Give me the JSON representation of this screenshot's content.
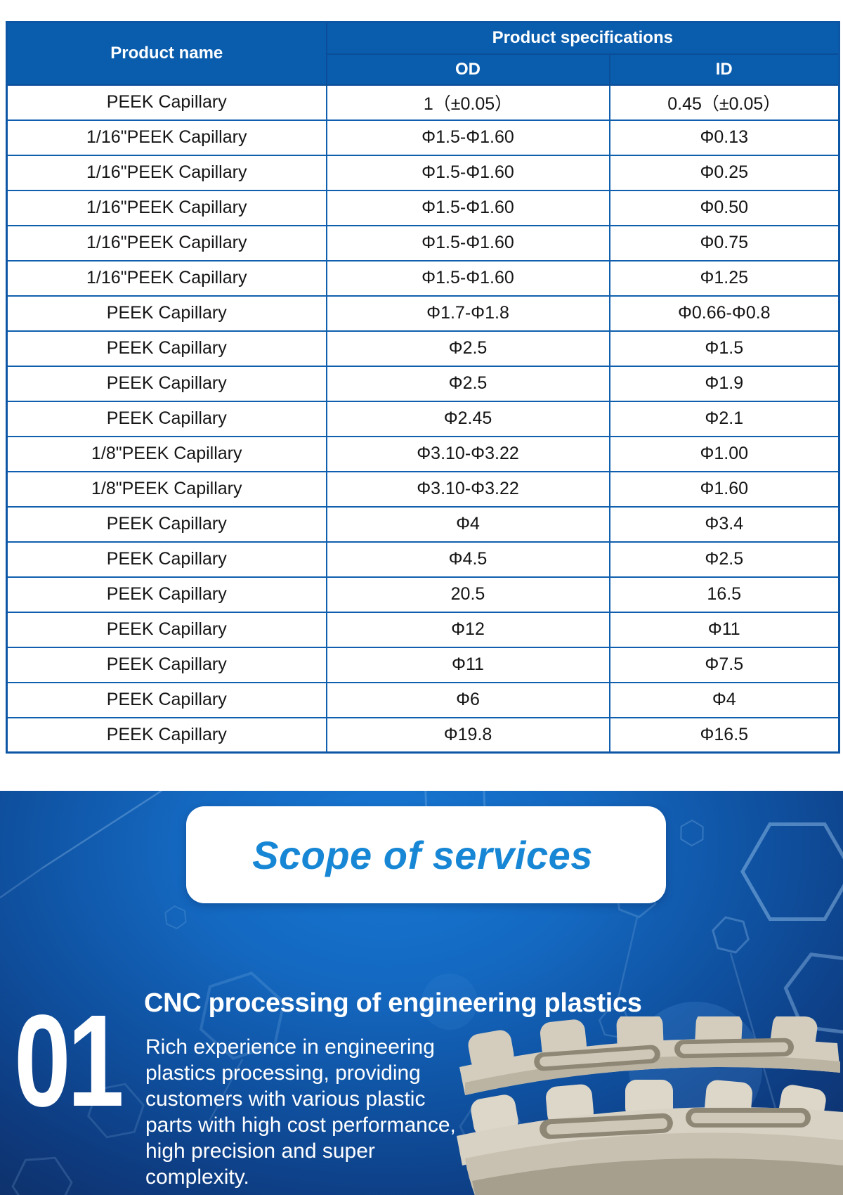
{
  "table": {
    "header": {
      "product_name": "Product name",
      "product_specifications": "Product specifications",
      "od": "OD",
      "id": "ID"
    },
    "rows": [
      {
        "name": "PEEK Capillary",
        "od": "1（±0.05）",
        "id": "0.45（±0.05）"
      },
      {
        "name": "1/16\"PEEK Capillary",
        "od": "Φ1.5-Φ1.60",
        "id": "Φ0.13"
      },
      {
        "name": "1/16\"PEEK Capillary",
        "od": "Φ1.5-Φ1.60",
        "id": "Φ0.25"
      },
      {
        "name": "1/16\"PEEK Capillary",
        "od": "Φ1.5-Φ1.60",
        "id": "Φ0.50"
      },
      {
        "name": "1/16\"PEEK Capillary",
        "od": "Φ1.5-Φ1.60",
        "id": "Φ0.75"
      },
      {
        "name": "1/16\"PEEK Capillary",
        "od": "Φ1.5-Φ1.60",
        "id": "Φ1.25"
      },
      {
        "name": "PEEK Capillary",
        "od": "Φ1.7-Φ1.8",
        "id": "Φ0.66-Φ0.8"
      },
      {
        "name": "PEEK Capillary",
        "od": "Φ2.5",
        "id": "Φ1.5"
      },
      {
        "name": "PEEK Capillary",
        "od": "Φ2.5",
        "id": "Φ1.9"
      },
      {
        "name": "PEEK Capillary",
        "od": "Φ2.45",
        "id": "Φ2.1"
      },
      {
        "name": "1/8\"PEEK Capillary",
        "od": "Φ3.10-Φ3.22",
        "id": "Φ1.00"
      },
      {
        "name": "1/8\"PEEK Capillary",
        "od": "Φ3.10-Φ3.22",
        "id": "Φ1.60"
      },
      {
        "name": "PEEK Capillary",
        "od": "Φ4",
        "id": "Φ3.4"
      },
      {
        "name": "PEEK Capillary",
        "od": "Φ4.5",
        "id": "Φ2.5"
      },
      {
        "name": "PEEK Capillary",
        "od": "20.5",
        "id": "16.5"
      },
      {
        "name": "PEEK Capillary",
        "od": "Φ12",
        "id": "Φ11"
      },
      {
        "name": "PEEK Capillary",
        "od": "Φ11",
        "id": "Φ7.5"
      },
      {
        "name": "PEEK Capillary",
        "od": "Φ6",
        "id": "Φ4"
      },
      {
        "name": "PEEK Capillary",
        "od": "Φ19.8",
        "id": "Φ16.5"
      }
    ]
  },
  "services_section": {
    "title": "Scope of services",
    "items": [
      {
        "number": "01",
        "heading": "CNC processing of engineering plastics",
        "description": "Rich experience in engineering plastics processing, providing customers with various plastic parts with high cost performance, high precision and super complexity."
      }
    ]
  },
  "colors": {
    "table_header_blue": "#0a5dad",
    "table_border_blue": "#0f5fae",
    "hero_center_blue": "#1778d3",
    "hero_edge_navy": "#0d2c5e",
    "scope_title_blue": "#1787d5",
    "part_beige": "#d8d2c4"
  }
}
